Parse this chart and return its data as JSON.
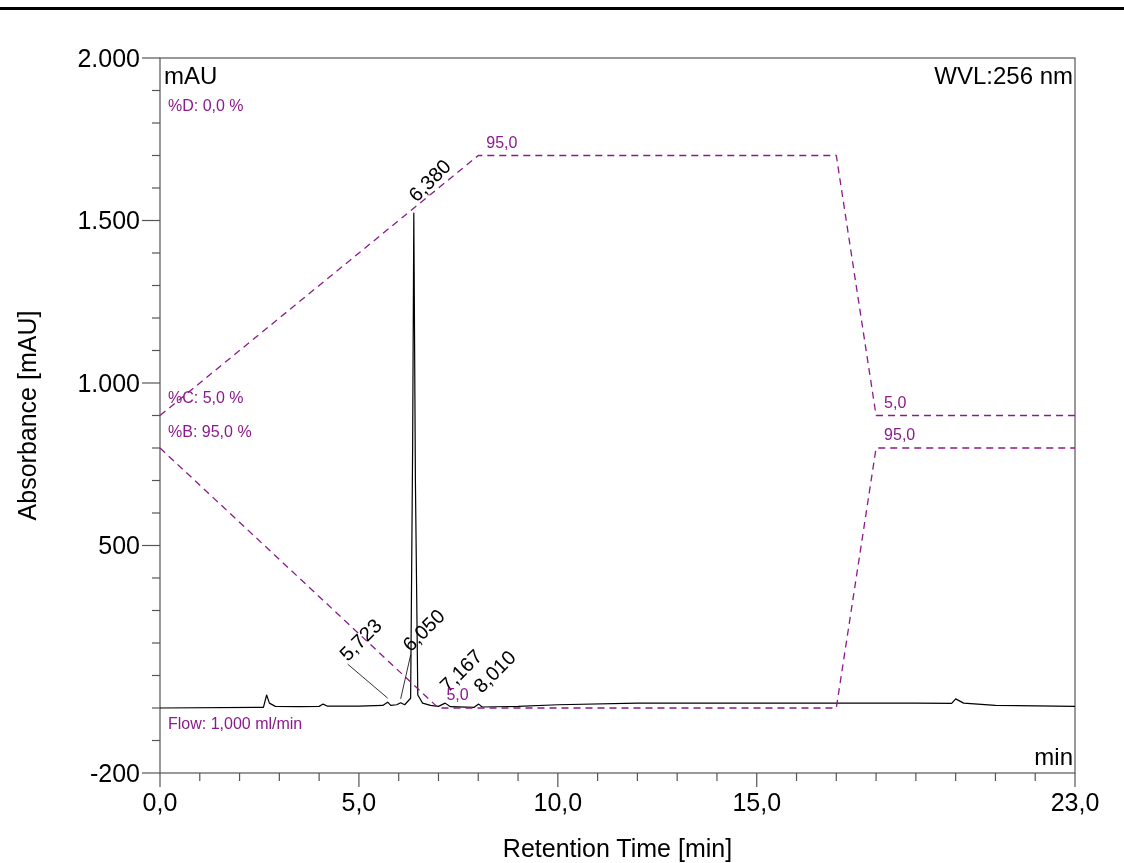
{
  "chart_data": {
    "type": "line",
    "xlabel": "Retention Time [min]",
    "ylabel": "Absorbance [mAU]",
    "xlim": [
      0,
      23
    ],
    "ylim": [
      -200,
      2000
    ],
    "xticks": [
      {
        "value": 0,
        "label": "0,0"
      },
      {
        "value": 1,
        "label": null
      },
      {
        "value": 2,
        "label": null
      },
      {
        "value": 3,
        "label": null
      },
      {
        "value": 4,
        "label": null
      },
      {
        "value": 5,
        "label": "5,0"
      },
      {
        "value": 6,
        "label": null
      },
      {
        "value": 7,
        "label": null
      },
      {
        "value": 8,
        "label": null
      },
      {
        "value": 9,
        "label": null
      },
      {
        "value": 10,
        "label": "10,0"
      },
      {
        "value": 11,
        "label": null
      },
      {
        "value": 12,
        "label": null
      },
      {
        "value": 13,
        "label": null
      },
      {
        "value": 14,
        "label": null
      },
      {
        "value": 15,
        "label": "15,0"
      },
      {
        "value": 16,
        "label": null
      },
      {
        "value": 17,
        "label": null
      },
      {
        "value": 18,
        "label": null
      },
      {
        "value": 19,
        "label": null
      },
      {
        "value": 20,
        "label": null
      },
      {
        "value": 21,
        "label": null
      },
      {
        "value": 22,
        "label": null
      },
      {
        "value": 23,
        "label": "23,0"
      }
    ],
    "yticks": [
      {
        "value": -200,
        "label": "-200"
      },
      {
        "value": -100,
        "label": null
      },
      {
        "value": 0,
        "label": null
      },
      {
        "value": 100,
        "label": null
      },
      {
        "value": 200,
        "label": null
      },
      {
        "value": 300,
        "label": null
      },
      {
        "value": 400,
        "label": null
      },
      {
        "value": 500,
        "label": "500"
      },
      {
        "value": 600,
        "label": null
      },
      {
        "value": 700,
        "label": null
      },
      {
        "value": 800,
        "label": null
      },
      {
        "value": 900,
        "label": null
      },
      {
        "value": 1000,
        "label": "1.000"
      },
      {
        "value": 1100,
        "label": null
      },
      {
        "value": 1200,
        "label": null
      },
      {
        "value": 1300,
        "label": null
      },
      {
        "value": 1400,
        "label": null
      },
      {
        "value": 1500,
        "label": "1.500"
      },
      {
        "value": 1600,
        "label": null
      },
      {
        "value": 1700,
        "label": null
      },
      {
        "value": 1800,
        "label": null
      },
      {
        "value": 1900,
        "label": null
      },
      {
        "value": 2000,
        "label": "2.000"
      }
    ],
    "grid": false,
    "marker": "none",
    "series": [
      {
        "color": "#000000",
        "line_style": "solid",
        "x": [
          0,
          2.6,
          2.68,
          2.75,
          2.9,
          3.5,
          4.0,
          4.1,
          4.2,
          5.0,
          5.6,
          5.723,
          5.8,
          5.95,
          6.05,
          6.15,
          6.3,
          6.35,
          6.38,
          6.42,
          6.48,
          6.6,
          6.8,
          7.0,
          7.167,
          7.3,
          7.9,
          8.01,
          8.1,
          9,
          10,
          12,
          15,
          17,
          19,
          19.9,
          20.0,
          20.2,
          21,
          23
        ],
        "values": [
          0,
          2,
          40,
          15,
          5,
          4,
          5,
          12,
          6,
          6,
          8,
          18,
          8,
          10,
          16,
          10,
          30,
          800,
          1523,
          700,
          40,
          15,
          8,
          5,
          15,
          4,
          2,
          12,
          3,
          5,
          10,
          15,
          15,
          15,
          15,
          14,
          28,
          15,
          8,
          5
        ]
      },
      {
        "color": "#8b1a8b",
        "line_style": "dashed",
        "x": [
          0,
          8.0,
          17.0,
          18.0,
          23
        ],
        "values": [
          900,
          1700,
          1700,
          900,
          900
        ]
      },
      {
        "color": "#8b1a8b",
        "line_style": "dashed",
        "x": [
          0,
          7.0,
          17.0,
          18.0,
          23
        ],
        "values": [
          800,
          0,
          0,
          800,
          800
        ]
      }
    ],
    "annotations": [
      "mAU",
      "WVL:256 nm",
      "%D: 0,0 %",
      "%C: 5,0 %",
      "%B: 95,0 %",
      "Flow: 1,000 ml/min",
      "min",
      {
        "text": "6,380",
        "x": 6.38,
        "y": 1523
      },
      {
        "text": "5,723",
        "x": 5.723,
        "y": 18
      },
      {
        "text": "6,050",
        "x": 6.05,
        "y": 16
      },
      {
        "text": "7,167",
        "x": 7.167,
        "y": 15
      },
      {
        "text": "8,010",
        "x": 8.01,
        "y": 12
      },
      {
        "text": "95,0",
        "x": 8.0,
        "y": 1700
      },
      {
        "text": "5,0",
        "x": 7.0,
        "y": 0
      },
      {
        "text": "5,0",
        "x": 18.0,
        "y": 900
      },
      {
        "text": "95,0",
        "x": 18.0,
        "y": 800
      }
    ]
  }
}
